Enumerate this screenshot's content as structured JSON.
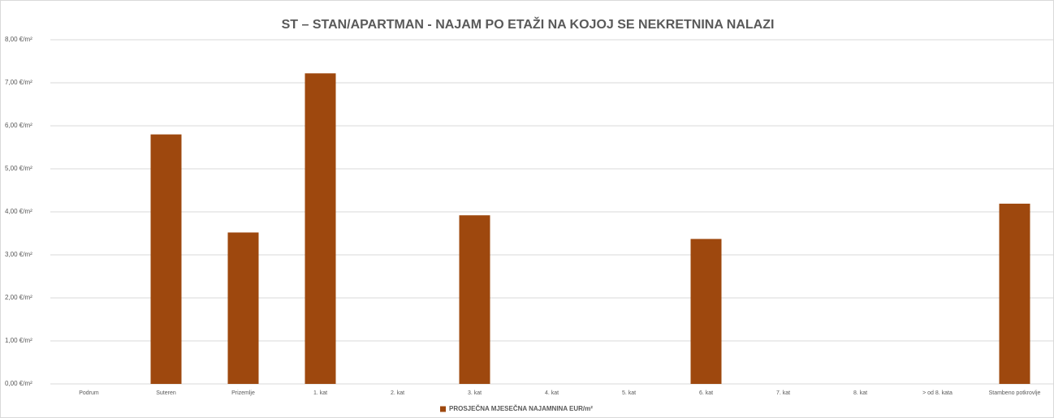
{
  "chart_data": {
    "type": "bar",
    "title": "ST – STAN/APARTMAN - NAJAM PO ETAŽI NA KOJOJ SE NEKRETNINA NALAZI",
    "categories": [
      "Podrum",
      "Suteren",
      "Prizemlje",
      "1. kat",
      "2. kat",
      "3. kat",
      "4. kat",
      "5. kat",
      "6. kat",
      "7. kat",
      "8. kat",
      "> od 8. kata",
      "Stambeno potkrovlje"
    ],
    "series": [
      {
        "name": "PROSJEČNA MJESEČNA NAJAMNINA EUR/m²",
        "color": "#9e480e",
        "values": [
          null,
          5.8,
          3.52,
          7.22,
          null,
          3.92,
          null,
          null,
          3.37,
          null,
          null,
          null,
          4.19
        ]
      }
    ],
    "ylim": [
      0,
      8
    ],
    "yticks": [
      {
        "value": 0,
        "label": "0,00 €/m²"
      },
      {
        "value": 1,
        "label": "1,00 €/m²"
      },
      {
        "value": 2,
        "label": "2,00 €/m²"
      },
      {
        "value": 3,
        "label": "3,00 €/m²"
      },
      {
        "value": 4,
        "label": "4,00 €/m²"
      },
      {
        "value": 5,
        "label": "5,00 €/m²"
      },
      {
        "value": 6,
        "label": "6,00 €/m²"
      },
      {
        "value": 7,
        "label": "7,00 €/m²"
      },
      {
        "value": 8,
        "label": "8,00 €/m²"
      }
    ],
    "grid": true,
    "legend": "bottom"
  }
}
